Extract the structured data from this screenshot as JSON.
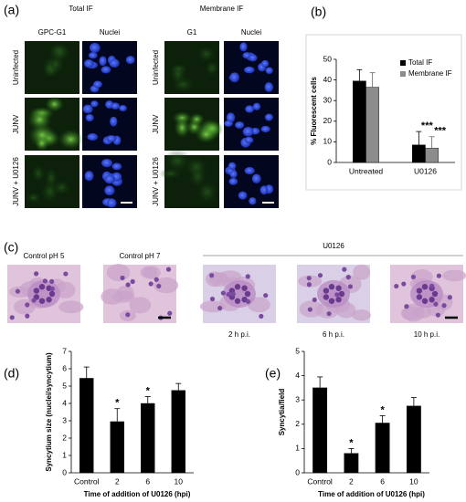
{
  "panel_labels": [
    "(a)",
    "(b)",
    "(c)",
    "(d)",
    "(e)"
  ],
  "panel_a": {
    "groups": [
      "Total IF",
      "Membrane IF"
    ],
    "columns": [
      [
        "GPC-G1",
        "Nuclei"
      ],
      [
        "G1",
        "Nuclei"
      ]
    ],
    "rows": [
      "Uninfected",
      "JUNV",
      "JUNV + U0126"
    ]
  },
  "panel_c": {
    "controls": [
      "Control pH 5",
      "Control pH 7"
    ],
    "treatment": "U0126",
    "times": [
      "2 h  p.i.",
      "6 h p.i.",
      "10 h p.i."
    ]
  },
  "chart_data": [
    {
      "type": "bar",
      "ylabel": "% Fluorescent cells",
      "categories": [
        "Untreated",
        "U0126"
      ],
      "series": [
        {
          "name": "Total IF",
          "color": "#000000",
          "values": [
            39.5,
            8.5
          ],
          "errors": [
            5.5,
            6.5
          ]
        },
        {
          "name": "Membrane IF",
          "color": "#8c8c8c",
          "values": [
            36.5,
            7
          ],
          "errors": [
            7,
            5.5
          ]
        }
      ],
      "annotations": [
        {
          "text": "***",
          "at": "U0126",
          "series": "Total IF"
        },
        {
          "text": "***",
          "at": "U0126",
          "series": "Membrane IF"
        }
      ],
      "ylim": [
        0,
        50
      ],
      "yticks": [
        0,
        10,
        20,
        30,
        40,
        50
      ],
      "legend": "upper right",
      "grid": false
    },
    {
      "type": "bar",
      "ylabel": "Syncytium size (nuclei/syncytium)",
      "xlabel": "Time of addition of U0126 (hpi)",
      "categories": [
        "Control",
        "2",
        "6",
        "10"
      ],
      "values": [
        5.45,
        2.95,
        4.0,
        4.75
      ],
      "errors": [
        0.65,
        0.75,
        0.4,
        0.4
      ],
      "color": "#000000",
      "annotations": [
        {
          "text": "*",
          "at": "2"
        },
        {
          "text": "*",
          "at": "6"
        }
      ],
      "ylim": [
        0,
        7
      ],
      "yticks": [
        0,
        1,
        2,
        3,
        4,
        5,
        6,
        7
      ],
      "grid": false
    },
    {
      "type": "bar",
      "ylabel": "Syncytia/field",
      "xlabel": "Time of addition of U0126 (hpi)",
      "categories": [
        "Control",
        "2",
        "6",
        "10"
      ],
      "values": [
        3.5,
        0.8,
        2.05,
        2.75
      ],
      "errors": [
        0.45,
        0.2,
        0.3,
        0.35
      ],
      "color": "#000000",
      "annotations": [
        {
          "text": "*",
          "at": "2"
        },
        {
          "text": "*",
          "at": "6"
        }
      ],
      "ylim": [
        0,
        5
      ],
      "yticks": [
        0,
        1,
        2,
        3,
        4,
        5
      ],
      "grid": false
    }
  ]
}
